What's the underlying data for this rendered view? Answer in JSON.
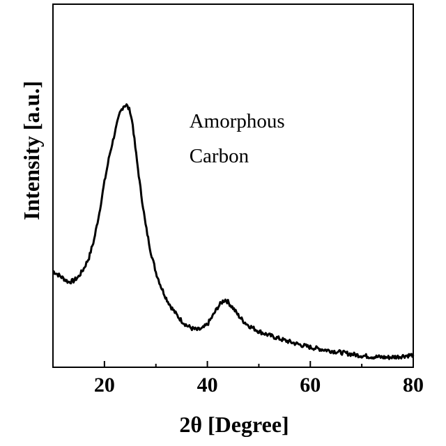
{
  "chart_data": {
    "type": "line",
    "title": "",
    "xlabel": "2θ [Degree]",
    "ylabel": "Intensity [a.u.]",
    "xlim": [
      10,
      80
    ],
    "ylim": [
      0,
      1
    ],
    "x_ticks": [
      20,
      40,
      60,
      80
    ],
    "x_tick_labels": [
      "20",
      "40",
      "60",
      "80"
    ],
    "y_ticks_shown": false,
    "grid": false,
    "legend": "none",
    "annotations": [
      {
        "lines": [
          "Amorphous",
          "Carbon"
        ],
        "x": 36.5,
        "y": 0.66
      }
    ],
    "series": [
      {
        "color": "#000000",
        "points": [
          [
            10,
            0.265
          ],
          [
            11,
            0.255
          ],
          [
            12,
            0.245
          ],
          [
            13,
            0.235
          ],
          [
            14,
            0.238
          ],
          [
            15,
            0.25
          ],
          [
            16,
            0.272
          ],
          [
            17,
            0.302
          ],
          [
            18,
            0.352
          ],
          [
            19,
            0.425
          ],
          [
            20,
            0.51
          ],
          [
            21,
            0.585
          ],
          [
            22,
            0.645
          ],
          [
            23,
            0.7
          ],
          [
            23.7,
            0.72
          ],
          [
            24.3,
            0.722
          ],
          [
            25,
            0.705
          ],
          [
            25.5,
            0.668
          ],
          [
            26,
            0.605
          ],
          [
            27,
            0.492
          ],
          [
            28,
            0.392
          ],
          [
            29,
            0.318
          ],
          [
            30,
            0.262
          ],
          [
            31,
            0.222
          ],
          [
            32,
            0.19
          ],
          [
            33,
            0.165
          ],
          [
            34,
            0.145
          ],
          [
            35,
            0.128
          ],
          [
            36,
            0.115
          ],
          [
            37,
            0.107
          ],
          [
            38,
            0.103
          ],
          [
            39,
            0.106
          ],
          [
            40,
            0.118
          ],
          [
            41,
            0.14
          ],
          [
            42,
            0.165
          ],
          [
            43,
            0.182
          ],
          [
            43.5,
            0.186
          ],
          [
            44,
            0.18
          ],
          [
            45,
            0.163
          ],
          [
            46,
            0.143
          ],
          [
            47,
            0.127
          ],
          [
            48,
            0.115
          ],
          [
            50,
            0.099
          ],
          [
            52,
            0.088
          ],
          [
            55,
            0.074
          ],
          [
            58,
            0.062
          ],
          [
            60,
            0.055
          ],
          [
            62,
            0.05
          ],
          [
            65,
            0.043
          ],
          [
            68,
            0.036
          ],
          [
            70,
            0.032
          ],
          [
            72,
            0.029
          ],
          [
            75,
            0.027
          ],
          [
            77,
            0.029
          ],
          [
            78,
            0.031
          ],
          [
            80,
            0.034
          ]
        ]
      }
    ]
  }
}
